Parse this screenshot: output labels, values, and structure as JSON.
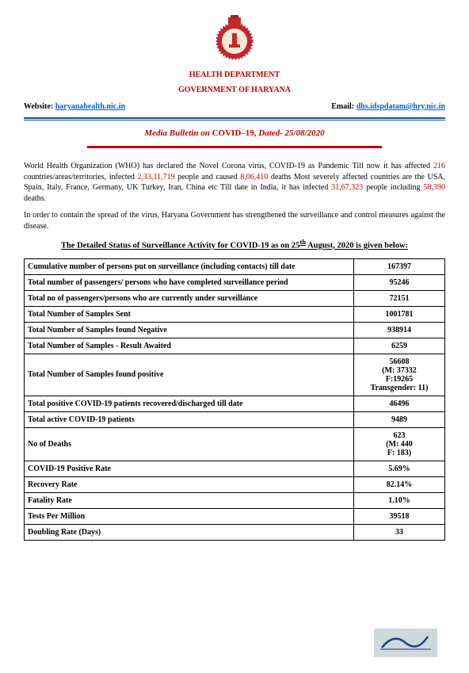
{
  "header": {
    "dept": "HEALTH DEPARTMENT",
    "govt": "GOVERNMENT OF HARYANA",
    "website_label": "Website: ",
    "website_link": "haryanahealth.nic.in",
    "email_label": "Email: ",
    "email_link": "dhs.idspdatam@hry.nic.in",
    "bulletin_prefix": "Media Bulletin on ",
    "bulletin_covid": "COVID–19, ",
    "bulletin_dated": "Dated- 25/08/2020"
  },
  "para1": {
    "t1": "World Health Organization (WHO) has declared the Novel Corona virus, COVID-19 as Pandemic Till now it has affected ",
    "r1": "216",
    "t2": " countries/areas/territories, infected ",
    "r2": "2,33,11,719",
    "t3": " people and caused ",
    "r3": "8,06,410",
    "t4": " deaths Most severely affected countries are the USA, Spain, Italy, France, Germany, UK Turkey, Iran, China etc Till date in India, it has infected ",
    "r4": "31,67,323",
    "t5": " people including ",
    "r5": "58,390",
    "t6": " deaths."
  },
  "para2": "In order to contain the spread of the virus, Haryana Government has strengthened the surveillance and control measures against the disease.",
  "section_heading_a": "The Detailed Status of Surveillance Activity for COVID-19 as on 25",
  "section_heading_sup": "th",
  "section_heading_b": " August, 2020 is given below:",
  "rows": [
    {
      "label": "Cumulative number of persons put on surveillance (including contacts) till date",
      "value": "167397"
    },
    {
      "label": "Total number of passengers/ persons who have completed surveillance period",
      "value": "95246"
    },
    {
      "label": "Total no of passengers/persons who are currently under surveillance",
      "value": "72151"
    },
    {
      "label": "Total Number of Samples Sent",
      "value": "1001781"
    },
    {
      "label": "Total Number of Samples found Negative",
      "value": "938914"
    },
    {
      "label": "Total Number of Samples - Result Awaited",
      "value": "6259"
    },
    {
      "label": "Total Number of Samples found positive",
      "value": "56608\n(M: 37332\nF:19265\nTransgender: 11)"
    },
    {
      "label": "Total positive COVID-19 patients recovered/discharged till date",
      "value": "46496"
    },
    {
      "label": "Total active COVID-19 patients",
      "value": "9489"
    },
    {
      "label": "No of Deaths",
      "value": "623\n(M: 440\nF: 183)"
    },
    {
      "label": "COVID-19 Positive Rate",
      "value": "5.69%"
    },
    {
      "label": "Recovery Rate",
      "value": "82.14%"
    },
    {
      "label": "Fatality Rate",
      "value": "1.10%"
    },
    {
      "label": "Tests Per Million",
      "value": "39518"
    },
    {
      "label": "Doubling Rate (Days)",
      "value": "33"
    }
  ],
  "emblem_colors": {
    "outer": "#c1272d",
    "inner": "#f4e9d8"
  },
  "signature_color": "#1d3d8f"
}
